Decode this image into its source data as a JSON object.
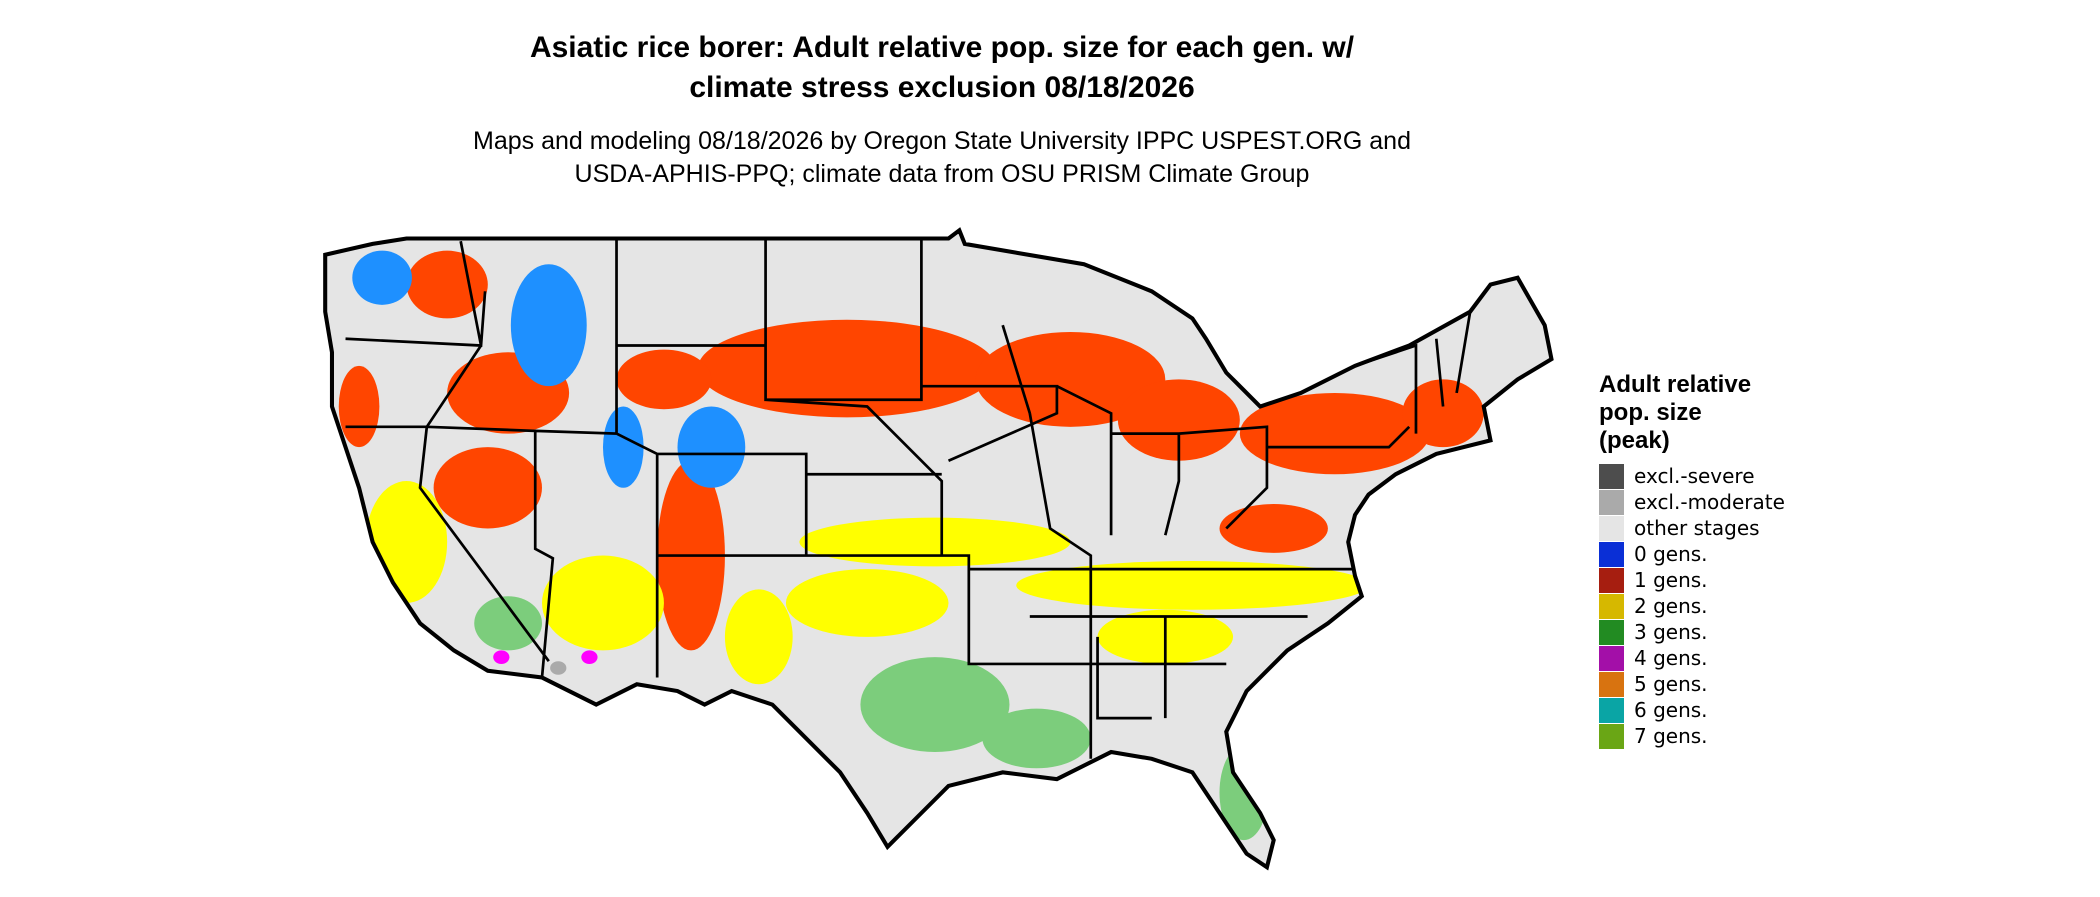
{
  "title": [
    "Asiatic rice borer: Adult relative pop. size for each gen. w/",
    "climate stress exclusion 08/18/2026"
  ],
  "subtitle": [
    "Maps and modeling 08/18/2026 by Oregon State University IPPC USPEST.ORG and",
    "USDA-APHIS-PPQ; climate data from OSU PRISM Climate Group"
  ],
  "legend": {
    "title": [
      "Adult relative",
      "pop. size",
      "(peak)"
    ],
    "items": [
      {
        "label": "excl.-severe",
        "color": "#4d4d4d"
      },
      {
        "label": "excl.-moderate",
        "color": "#aaaaaa"
      },
      {
        "label": "other stages",
        "color": "#e5e5e5"
      },
      {
        "label": "0 gens.",
        "color": "#0a2fd6"
      },
      {
        "label": "1 gens.",
        "color": "#a61e10"
      },
      {
        "label": "2 gens.",
        "color": "#d6b800"
      },
      {
        "label": "3 gens.",
        "color": "#228b22"
      },
      {
        "label": "4 gens.",
        "color": "#a30fa8"
      },
      {
        "label": "5 gens.",
        "color": "#d87310"
      },
      {
        "label": "6 gens.",
        "color": "#0aa5a5"
      },
      {
        "label": "7 gens.",
        "color": "#6aa615"
      }
    ]
  }
}
